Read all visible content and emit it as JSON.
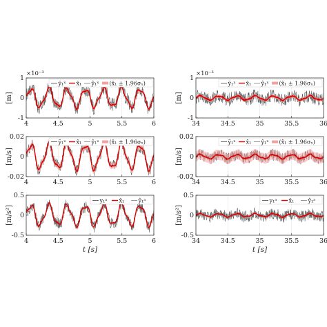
{
  "chart_data": [
    {
      "type": "line",
      "id": "p00",
      "ylabel": "[m]",
      "multiplier": "×10⁻³",
      "xlim": [
        4,
        6
      ],
      "ylim": [
        -1,
        1
      ],
      "xticks": [
        "4",
        "4.5",
        "5",
        "5.5",
        "6"
      ],
      "xtick_values": [
        4,
        4.5,
        5,
        5.5,
        6
      ],
      "yticks": [
        "-1",
        "0",
        "1"
      ],
      "ytick_values": [
        -1,
        0,
        1
      ],
      "xlabel": "",
      "grid": true,
      "legend": "top-right",
      "legend_entries": [
        "ỹ₁ˣ",
        "x̂₁",
        "ŷ₁ˣ",
        "(x̂₁ ± 1.96σₓ)"
      ],
      "signal": {
        "amplitude": 0.45,
        "frequency_hz": 3.5,
        "noise": 0.28,
        "band": 0.08
      },
      "series": [
        {
          "name": "ỹ₁ˣ",
          "color": "#555555"
        },
        {
          "name": "x̂₁",
          "color": "#dd0000"
        },
        {
          "name": "ŷ₁ˣ",
          "color": "#888888"
        },
        {
          "name": "(x̂₁ ± 1.96σₓ)",
          "color": "#f4a0a0"
        }
      ]
    },
    {
      "type": "line",
      "id": "p01",
      "ylabel": "[m]",
      "multiplier": "×10⁻³",
      "xlim": [
        34,
        36
      ],
      "ylim": [
        -1,
        1
      ],
      "xticks": [
        "34",
        "34.5",
        "35",
        "35.5",
        "36"
      ],
      "xtick_values": [
        34,
        34.5,
        35,
        35.5,
        36
      ],
      "yticks": [
        "-1",
        "0",
        "1"
      ],
      "ytick_values": [
        -1,
        0,
        1
      ],
      "xlabel": "",
      "grid": true,
      "legend": "top-right",
      "legend_entries": [
        "ỹ₁ˣ",
        "x̂₁",
        "ŷ₁ˣ",
        "(x̂₁ ± 1.96σₓ)"
      ],
      "signal": {
        "amplitude": 0.1,
        "frequency_hz": 3.5,
        "noise": 0.28,
        "band": 0.08
      },
      "series": [
        {
          "name": "ỹ₁ˣ",
          "color": "#555555"
        },
        {
          "name": "x̂₁",
          "color": "#dd0000"
        },
        {
          "name": "ŷ₁ˣ",
          "color": "#888888"
        },
        {
          "name": "(x̂₁ ± 1.96σₓ)",
          "color": "#f4a0a0"
        }
      ]
    },
    {
      "type": "line",
      "id": "p10",
      "ylabel": "[m/s]",
      "multiplier": "",
      "xlim": [
        4,
        6
      ],
      "ylim": [
        -0.02,
        0.02
      ],
      "xticks": [
        "4",
        "4.5",
        "5",
        "5.5",
        "6"
      ],
      "xtick_values": [
        4,
        4.5,
        5,
        5.5,
        6
      ],
      "yticks": [
        "-0.02",
        "0",
        "0.02"
      ],
      "ytick_values": [
        -0.02,
        0,
        0.02
      ],
      "xlabel": "",
      "grid": true,
      "legend": "top-right",
      "legend_entries": [
        "ỹ₁ˣ",
        "x̂₁",
        "ŷ₁ˣ",
        "(x̂₁ ± 1.96σₓ)"
      ],
      "signal": {
        "amplitude": 0.012,
        "frequency_hz": 3.5,
        "noise": 0.005,
        "band": 0.003
      },
      "series": [
        {
          "name": "ỹ₁ˣ",
          "color": "#555555"
        },
        {
          "name": "x̂₁",
          "color": "#dd0000"
        },
        {
          "name": "ŷ₁ˣ",
          "color": "#888888"
        },
        {
          "name": "(x̂₁ ± 1.96σₓ)",
          "color": "#f4a0a0"
        }
      ]
    },
    {
      "type": "line",
      "id": "p11",
      "ylabel": "[m/s]",
      "multiplier": "",
      "xlim": [
        34,
        36
      ],
      "ylim": [
        -0.02,
        0.02
      ],
      "xticks": [
        "34",
        "34.5",
        "35",
        "35.5",
        "36"
      ],
      "xtick_values": [
        34,
        34.5,
        35,
        35.5,
        36
      ],
      "yticks": [
        "-0.02",
        "0",
        "0.02"
      ],
      "ytick_values": [
        -0.02,
        0,
        0.02
      ],
      "xlabel": "",
      "grid": true,
      "legend": "top-right",
      "legend_entries": [
        "ỹ₁ˣ",
        "x̂₁",
        "ŷ₁ˣ",
        "(x̂₁ ± 1.96σₓ)"
      ],
      "signal": {
        "amplitude": 0.002,
        "frequency_hz": 3.5,
        "noise": 0.005,
        "band": 0.005
      },
      "series": [
        {
          "name": "ỹ₁ˣ",
          "color": "#555555"
        },
        {
          "name": "x̂₁",
          "color": "#dd0000"
        },
        {
          "name": "ŷ₁ˣ",
          "color": "#888888"
        },
        {
          "name": "(x̂₁ ± 1.96σₓ)",
          "color": "#f4a0a0"
        }
      ]
    },
    {
      "type": "line",
      "id": "p20",
      "ylabel": "[m/s²]",
      "multiplier": "",
      "xlim": [
        4,
        6
      ],
      "ylim": [
        -0.5,
        0.5
      ],
      "xticks": [
        "4",
        "4.5",
        "5",
        "5.5",
        "6"
      ],
      "xtick_values": [
        4,
        4.5,
        5,
        5.5,
        6
      ],
      "yticks": [
        "-0.5",
        "0",
        "0.5"
      ],
      "ytick_values": [
        -0.5,
        0,
        0.5
      ],
      "xlabel": "t [s]",
      "grid": true,
      "legend": "top-right",
      "legend_entries": [
        "y₁ᵃ",
        "x̂₁",
        "ŷ₁ᵃ"
      ],
      "signal": {
        "amplitude": 0.25,
        "frequency_hz": 3.5,
        "noise": 0.12,
        "band": 0
      },
      "series": [
        {
          "name": "y₁ᵃ",
          "color": "#555555"
        },
        {
          "name": "x̂₁",
          "color": "#dd0000"
        },
        {
          "name": "ŷ₁ᵃ",
          "color": "#888888"
        }
      ]
    },
    {
      "type": "line",
      "id": "p21",
      "ylabel": "[m/s²]",
      "multiplier": "",
      "xlim": [
        34,
        36
      ],
      "ylim": [
        -0.5,
        0.5
      ],
      "xticks": [
        "34",
        "34.5",
        "35",
        "35.5",
        "36"
      ],
      "xtick_values": [
        34,
        34.5,
        35,
        35.5,
        36
      ],
      "yticks": [
        "-0.5",
        "0",
        "0.5"
      ],
      "ytick_values": [
        -0.5,
        0,
        0.5
      ],
      "xlabel": "t [s]",
      "grid": true,
      "legend": "top-right",
      "legend_entries": [
        "y₁ᵃ",
        "x̂₁",
        "ŷ₁ᵃ"
      ],
      "signal": {
        "amplitude": 0.04,
        "frequency_hz": 3.5,
        "noise": 0.12,
        "band": 0
      },
      "series": [
        {
          "name": "y₁ᵃ",
          "color": "#555555"
        },
        {
          "name": "x̂₁",
          "color": "#dd0000"
        },
        {
          "name": "ŷ₁ᵃ",
          "color": "#888888"
        }
      ]
    }
  ]
}
